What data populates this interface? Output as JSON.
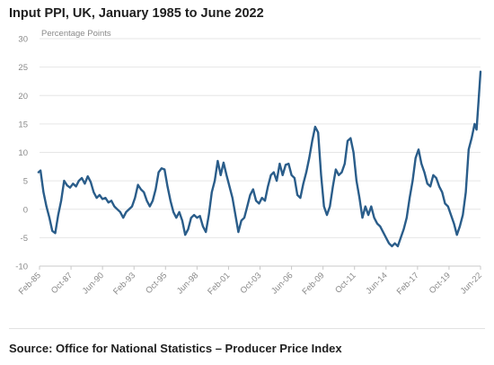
{
  "title": "Input PPI, UK, January 1985 to June 2022",
  "source": "Source: Office for National Statistics – Producer Price Index",
  "chart_data": {
    "type": "line",
    "title": "Input PPI, UK, January 1985 to June 2022",
    "ylabel": "Percentage Points",
    "ylim": [
      -10,
      30
    ],
    "yticks": [
      -10,
      -5,
      0,
      5,
      10,
      15,
      20,
      25,
      30
    ],
    "grid": true,
    "legend": "none",
    "line_color": "#2a5d8a",
    "x_tick_labels": [
      "Feb-85",
      "Oct-87",
      "Jun-90",
      "Feb-93",
      "Oct-95",
      "Jun-98",
      "Feb-01",
      "Oct-03",
      "Jun-06",
      "Feb-09",
      "Oct-11",
      "Jun-14",
      "Feb-17",
      "Oct-19",
      "Jun-22"
    ],
    "series": [
      {
        "values": [
          [
            "1985-01",
            6.5
          ],
          [
            "1985-03",
            6.8
          ],
          [
            "1985-06",
            3.0
          ],
          [
            "1985-09",
            0.5
          ],
          [
            "1985-12",
            -1.5
          ],
          [
            "1986-03",
            -3.8
          ],
          [
            "1986-06",
            -4.2
          ],
          [
            "1986-09",
            -1.0
          ],
          [
            "1986-12",
            1.5
          ],
          [
            "1987-03",
            5.0
          ],
          [
            "1987-06",
            4.2
          ],
          [
            "1987-09",
            3.8
          ],
          [
            "1987-12",
            4.5
          ],
          [
            "1988-03",
            4.0
          ],
          [
            "1988-06",
            5.0
          ],
          [
            "1988-09",
            5.5
          ],
          [
            "1988-12",
            4.5
          ],
          [
            "1989-03",
            5.8
          ],
          [
            "1989-06",
            4.8
          ],
          [
            "1989-09",
            3.0
          ],
          [
            "1989-12",
            2.0
          ],
          [
            "1990-03",
            2.5
          ],
          [
            "1990-06",
            1.8
          ],
          [
            "1990-09",
            2.0
          ],
          [
            "1990-12",
            1.2
          ],
          [
            "1991-03",
            1.5
          ],
          [
            "1991-06",
            0.5
          ],
          [
            "1991-09",
            0.0
          ],
          [
            "1991-12",
            -0.5
          ],
          [
            "1992-03",
            -1.5
          ],
          [
            "1992-06",
            -0.5
          ],
          [
            "1992-09",
            0.0
          ],
          [
            "1992-12",
            0.5
          ],
          [
            "1993-03",
            2.0
          ],
          [
            "1993-06",
            4.3
          ],
          [
            "1993-09",
            3.5
          ],
          [
            "1993-12",
            3.0
          ],
          [
            "1994-03",
            1.5
          ],
          [
            "1994-06",
            0.5
          ],
          [
            "1994-09",
            1.5
          ],
          [
            "1994-12",
            3.5
          ],
          [
            "1995-03",
            6.5
          ],
          [
            "1995-06",
            7.2
          ],
          [
            "1995-09",
            7.0
          ],
          [
            "1995-12",
            4.0
          ],
          [
            "1996-03",
            1.5
          ],
          [
            "1996-06",
            -0.5
          ],
          [
            "1996-09",
            -1.5
          ],
          [
            "1996-12",
            -0.5
          ],
          [
            "1997-03",
            -2.0
          ],
          [
            "1997-06",
            -4.5
          ],
          [
            "1997-09",
            -3.5
          ],
          [
            "1997-12",
            -1.5
          ],
          [
            "1998-03",
            -1.0
          ],
          [
            "1998-06",
            -1.5
          ],
          [
            "1998-09",
            -1.2
          ],
          [
            "1998-12",
            -3.0
          ],
          [
            "1999-03",
            -4.0
          ],
          [
            "1999-06",
            -1.0
          ],
          [
            "1999-09",
            3.0
          ],
          [
            "1999-12",
            5.0
          ],
          [
            "2000-03",
            8.5
          ],
          [
            "2000-06",
            6.0
          ],
          [
            "2000-09",
            8.2
          ],
          [
            "2000-12",
            6.0
          ],
          [
            "2001-03",
            4.0
          ],
          [
            "2001-06",
            2.0
          ],
          [
            "2001-09",
            -1.0
          ],
          [
            "2001-12",
            -4.0
          ],
          [
            "2002-03",
            -2.0
          ],
          [
            "2002-06",
            -1.5
          ],
          [
            "2002-09",
            0.5
          ],
          [
            "2002-12",
            2.5
          ],
          [
            "2003-03",
            3.5
          ],
          [
            "2003-06",
            1.5
          ],
          [
            "2003-09",
            1.0
          ],
          [
            "2003-12",
            2.0
          ],
          [
            "2004-03",
            1.5
          ],
          [
            "2004-06",
            4.0
          ],
          [
            "2004-09",
            6.0
          ],
          [
            "2004-12",
            6.5
          ],
          [
            "2005-03",
            5.0
          ],
          [
            "2005-06",
            8.0
          ],
          [
            "2005-09",
            6.0
          ],
          [
            "2005-12",
            7.8
          ],
          [
            "2006-03",
            8.0
          ],
          [
            "2006-06",
            6.0
          ],
          [
            "2006-09",
            5.5
          ],
          [
            "2006-12",
            2.5
          ],
          [
            "2007-03",
            2.0
          ],
          [
            "2007-06",
            4.5
          ],
          [
            "2007-09",
            6.5
          ],
          [
            "2007-12",
            9.0
          ],
          [
            "2008-03",
            12.0
          ],
          [
            "2008-06",
            14.5
          ],
          [
            "2008-09",
            13.5
          ],
          [
            "2008-12",
            6.0
          ],
          [
            "2009-03",
            0.5
          ],
          [
            "2009-06",
            -1.0
          ],
          [
            "2009-09",
            0.5
          ],
          [
            "2009-12",
            4.0
          ],
          [
            "2010-03",
            7.0
          ],
          [
            "2010-06",
            6.0
          ],
          [
            "2010-09",
            6.5
          ],
          [
            "2010-12",
            8.0
          ],
          [
            "2011-03",
            12.0
          ],
          [
            "2011-06",
            12.5
          ],
          [
            "2011-09",
            10.0
          ],
          [
            "2011-12",
            5.0
          ],
          [
            "2012-03",
            2.0
          ],
          [
            "2012-06",
            -1.5
          ],
          [
            "2012-09",
            0.5
          ],
          [
            "2012-12",
            -1.0
          ],
          [
            "2013-03",
            0.5
          ],
          [
            "2013-06",
            -1.5
          ],
          [
            "2013-09",
            -2.5
          ],
          [
            "2013-12",
            -3.0
          ],
          [
            "2014-03",
            -4.0
          ],
          [
            "2014-06",
            -5.0
          ],
          [
            "2014-09",
            -6.0
          ],
          [
            "2014-12",
            -6.5
          ],
          [
            "2015-03",
            -6.0
          ],
          [
            "2015-06",
            -6.5
          ],
          [
            "2015-09",
            -5.0
          ],
          [
            "2015-12",
            -3.5
          ],
          [
            "2016-03",
            -1.5
          ],
          [
            "2016-06",
            2.0
          ],
          [
            "2016-09",
            5.0
          ],
          [
            "2016-12",
            9.0
          ],
          [
            "2017-03",
            10.5
          ],
          [
            "2017-06",
            8.0
          ],
          [
            "2017-09",
            6.5
          ],
          [
            "2017-12",
            4.5
          ],
          [
            "2018-03",
            4.0
          ],
          [
            "2018-06",
            6.0
          ],
          [
            "2018-09",
            5.5
          ],
          [
            "2018-12",
            4.0
          ],
          [
            "2019-03",
            3.0
          ],
          [
            "2019-06",
            1.0
          ],
          [
            "2019-09",
            0.5
          ],
          [
            "2019-12",
            -1.0
          ],
          [
            "2020-03",
            -2.5
          ],
          [
            "2020-06",
            -4.5
          ],
          [
            "2020-09",
            -3.0
          ],
          [
            "2020-12",
            -1.0
          ],
          [
            "2021-03",
            3.0
          ],
          [
            "2021-06",
            10.5
          ],
          [
            "2021-09",
            12.5
          ],
          [
            "2021-12",
            15.0
          ],
          [
            "2022-02",
            14.0
          ],
          [
            "2022-04",
            19.0
          ],
          [
            "2022-06",
            24.2
          ]
        ]
      }
    ]
  }
}
